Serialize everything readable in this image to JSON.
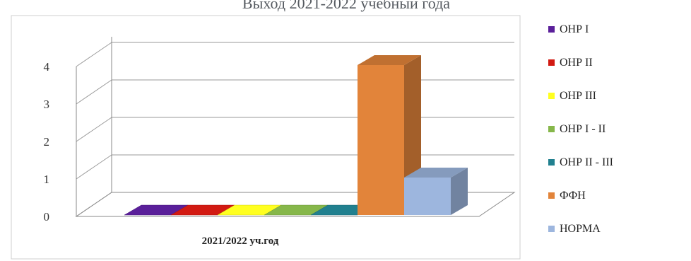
{
  "chart_data": {
    "type": "bar",
    "title": "Выход 2021-2022 учебный года",
    "categories": [
      "2021/2022 уч.год"
    ],
    "series": [
      {
        "name": "ОНР I",
        "values": [
          0
        ],
        "color": "#5a1f9a"
      },
      {
        "name": "ОНР II",
        "values": [
          0
        ],
        "color": "#d21a12"
      },
      {
        "name": "ОНР III",
        "values": [
          0
        ],
        "color": "#ffff20"
      },
      {
        "name": "ОНР I - II",
        "values": [
          0
        ],
        "color": "#86b74a"
      },
      {
        "name": "ОНР  II - III",
        "values": [
          0
        ],
        "color": "#21808f"
      },
      {
        "name": "ФФН",
        "values": [
          4
        ],
        "color": "#e2843a"
      },
      {
        "name": "НОРМА",
        "values": [
          1
        ],
        "color": "#9db6de"
      }
    ],
    "y_ticks": [
      "0",
      "1",
      "2",
      "3",
      "4"
    ],
    "ylim": [
      0,
      4.5
    ],
    "legend_position": "right",
    "grid": true,
    "projection": "3d-column"
  }
}
